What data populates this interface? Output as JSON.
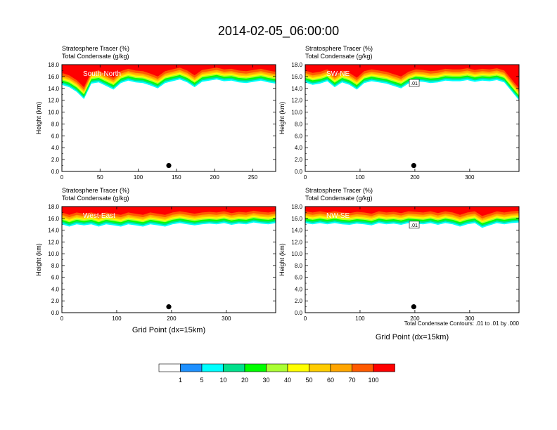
{
  "figure": {
    "title": "2014-02-05_06:00:00",
    "left_label_line1": "Stratosphere Tracer   (%)",
    "left_label_line2": "Total Condensate   (g/kg)",
    "ylabel": "Height (km)",
    "xlabel": "Grid Point (dx=15km)",
    "contour_note": "Total Condensate Contours: .01 to .01 by .000"
  },
  "colorbar": {
    "colors": [
      "#ffffff",
      "#1e90ff",
      "#00ffff",
      "#00e08c",
      "#00ff00",
      "#aaff33",
      "#ffff00",
      "#ffcc00",
      "#ffa500",
      "#ff5a00",
      "#ff0000"
    ],
    "labels": [
      "1",
      "5",
      "10",
      "20",
      "30",
      "40",
      "50",
      "60",
      "70",
      "100"
    ]
  },
  "chart_data": [
    {
      "type": "heatmap",
      "panel_label": "South-North",
      "xlabel": "",
      "ylabel": "Height (km)",
      "xlim": [
        0,
        280
      ],
      "ylim": [
        0,
        18
      ],
      "xticks": [
        0,
        50,
        100,
        150,
        200,
        250
      ],
      "yticks": [
        "0.0",
        "2.0",
        "4.0",
        "6.0",
        "8.0",
        "10.0",
        "12.0",
        "14.0",
        "16.0",
        "18.0"
      ],
      "tracer_top_km": 18,
      "tracer_base_km": [
        14.6,
        14.2,
        13.4,
        12.2,
        14.8,
        15.0,
        14.4,
        13.8,
        14.9,
        15.3,
        15.0,
        14.9,
        14.5,
        14.0,
        14.9,
        15.2,
        15.5,
        15.0,
        14.2,
        15.1,
        15.3,
        15.5,
        15.2,
        15.3,
        15.0,
        14.9,
        15.1,
        15.3,
        15.0,
        14.8
      ],
      "marker": {
        "x": 140,
        "y": 1.0
      },
      "contour_label": ""
    },
    {
      "type": "heatmap",
      "panel_label": "SW-NE",
      "xlabel": "",
      "ylabel": "",
      "xlim": [
        0,
        390
      ],
      "ylim": [
        0,
        18
      ],
      "xticks": [
        0,
        100,
        200,
        300
      ],
      "yticks": [
        "0.0",
        "2.0",
        "4.0",
        "6.0",
        "8.0",
        "10.0",
        "12.0",
        "14.0",
        "16.0",
        "18.0"
      ],
      "tracer_top_km": 18,
      "tracer_base_km": [
        15.0,
        14.6,
        14.8,
        15.2,
        14.2,
        15.0,
        14.6,
        13.8,
        14.9,
        15.2,
        15.0,
        14.8,
        14.4,
        14.0,
        14.8,
        15.2,
        15.1,
        14.9,
        15.0,
        15.3,
        15.2,
        15.2,
        15.4,
        15.1,
        15.3,
        15.2,
        15.4,
        15.0,
        13.5,
        12.0
      ],
      "marker": {
        "x": 198,
        "y": 1.0
      },
      "contour_label": ".01"
    },
    {
      "type": "heatmap",
      "panel_label": "West-East",
      "xlabel": "Grid Point (dx=15km)",
      "ylabel": "Height (km)",
      "xlim": [
        0,
        390
      ],
      "ylim": [
        0,
        18
      ],
      "xticks": [
        0,
        100,
        200,
        300
      ],
      "yticks": [
        "0.0",
        "2.0",
        "4.0",
        "6.0",
        "8.0",
        "10.0",
        "12.0",
        "14.0",
        "16.0",
        "18.0"
      ],
      "tracer_top_km": 18,
      "tracer_base_km": [
        15.0,
        14.6,
        15.0,
        14.8,
        15.0,
        14.6,
        15.0,
        14.8,
        14.6,
        15.0,
        14.8,
        14.6,
        15.0,
        14.8,
        14.6,
        15.0,
        15.2,
        15.0,
        14.8,
        15.0,
        15.1,
        15.0,
        15.2,
        14.9,
        15.1,
        15.0,
        15.3,
        15.1,
        15.0,
        15.2
      ],
      "marker": {
        "x": 195,
        "y": 1.0
      },
      "contour_label": ""
    },
    {
      "type": "heatmap",
      "panel_label": "NW-SE",
      "xlabel": "Grid Point (dx=15km)",
      "ylabel": "",
      "xlim": [
        0,
        390
      ],
      "ylim": [
        0,
        18
      ],
      "xticks": [
        0,
        100,
        200,
        300
      ],
      "yticks": [
        "0.0",
        "2.0",
        "4.0",
        "6.0",
        "8.0",
        "10.0",
        "12.0",
        "14.0",
        "16.0",
        "18.0"
      ],
      "tracer_top_km": 18,
      "tracer_base_km": [
        15.2,
        15.0,
        15.2,
        15.0,
        15.2,
        15.0,
        14.9,
        15.1,
        15.0,
        14.8,
        15.2,
        15.0,
        15.1,
        14.9,
        15.2,
        15.1,
        15.0,
        15.2,
        14.9,
        15.2,
        15.0,
        14.6,
        15.0,
        15.2,
        14.4,
        14.8,
        15.2,
        15.0,
        15.2,
        15.3
      ],
      "marker": {
        "x": 198,
        "y": 1.0
      },
      "contour_label": ".01"
    }
  ]
}
